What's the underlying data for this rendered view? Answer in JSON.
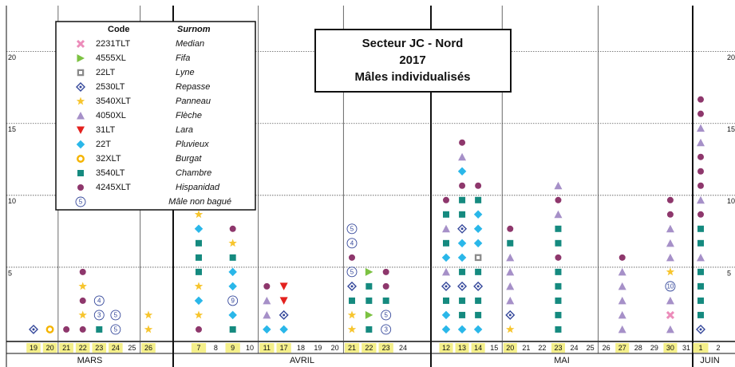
{
  "chart_data": {
    "type": "dot-stack",
    "title": [
      "Secteur JC - Nord",
      "2017",
      "Mâles individualisés"
    ],
    "ylim": [
      0,
      23.2
    ],
    "yticks": [
      5,
      10,
      15,
      20
    ],
    "grid": true,
    "legend": {
      "header": {
        "code": "Code",
        "name": "Surnom"
      },
      "entries": [
        {
          "code": "2231TLT",
          "name": "Median",
          "symbol": "x",
          "color": "#ec8cba"
        },
        {
          "code": "4555XL",
          "name": "Fifa",
          "symbol": "triangle-right",
          "color": "#7cc242"
        },
        {
          "code": "22LT",
          "name": "Lyne",
          "symbol": "square-open",
          "color": "#8a8a8a"
        },
        {
          "code": "2530LT",
          "name": "Repasse",
          "symbol": "diamond-open",
          "color": "#34479a"
        },
        {
          "code": "3540XLT",
          "name": "Panneau",
          "symbol": "star",
          "color": "#f7c52e"
        },
        {
          "code": "4050XL",
          "name": "Flèche",
          "symbol": "triangle-up",
          "color": "#a690c8"
        },
        {
          "code": "31LT",
          "name": "Lara",
          "symbol": "triangle-down",
          "color": "#e3211e"
        },
        {
          "code": "22T",
          "name": "Pluvieux",
          "symbol": "diamond",
          "color": "#2ab7e9"
        },
        {
          "code": "32XLT",
          "name": "Burgat",
          "symbol": "ring",
          "color": "#f5b400"
        },
        {
          "code": "3540LT",
          "name": "Chambre",
          "symbol": "square",
          "color": "#158a7f"
        },
        {
          "code": "4245XLT",
          "name": "Hispanidad",
          "symbol": "circle",
          "color": "#8e376c"
        }
      ],
      "non_bague": {
        "label": "5",
        "name": "Mâle non bagué",
        "color": "#34479a"
      }
    },
    "highlight_color": "#f4ef8a",
    "months": [
      {
        "name": "MARS",
        "days": [
          {
            "day": 19,
            "highlight": true,
            "marks": [
              "2530LT"
            ]
          },
          {
            "day": 20,
            "highlight": true,
            "marks": [
              "32XLT"
            ]
          },
          {
            "day": 21,
            "highlight": true,
            "marks": [
              "4245XLT"
            ]
          },
          {
            "day": 22,
            "highlight": true,
            "marks": [
              "4245XLT",
              "3540XLT",
              "4245XLT",
              "3540XLT",
              "4245XLT"
            ]
          },
          {
            "day": 23,
            "highlight": true,
            "marks": [
              "3540LT",
              "3",
              "4"
            ]
          },
          {
            "day": 24,
            "highlight": true,
            "marks": [
              "5",
              "5"
            ]
          },
          {
            "day": 25,
            "highlight": false
          },
          {
            "day": 26,
            "highlight": true,
            "marks": [
              "3540XLT",
              "3540XLT"
            ]
          }
        ]
      },
      {
        "name": "AVRIL",
        "days": [
          {
            "day": 7,
            "highlight": true,
            "marks": [
              "4245XLT",
              "3540XLT",
              "22T",
              "3540XLT",
              "3540LT",
              "3540LT",
              "3540LT",
              "22T",
              "3540XLT"
            ]
          },
          {
            "day": 8,
            "highlight": false
          },
          {
            "day": 9,
            "highlight": true,
            "marks": [
              "3540LT",
              "22T",
              "9",
              "22T",
              "22T",
              "3540LT",
              "3540XLT",
              "4245XLT"
            ]
          },
          {
            "day": 10,
            "highlight": false
          },
          {
            "day": 11,
            "highlight": true,
            "marks": [
              "22T",
              "4050XL",
              "4050XL",
              "4245XLT"
            ]
          },
          {
            "day": 17,
            "highlight": true,
            "marks": [
              "22T",
              "2530LT",
              "31LT",
              "31LT"
            ]
          },
          {
            "day": 18,
            "highlight": false
          },
          {
            "day": 19,
            "highlight": false
          },
          {
            "day": 20,
            "highlight": false
          },
          {
            "day": 21,
            "highlight": true,
            "marks": [
              "3540XLT",
              "3540XLT",
              "3540LT",
              "2530LT",
              "5",
              "4245XLT",
              "4",
              "5"
            ]
          },
          {
            "day": 22,
            "highlight": true,
            "marks": [
              "3540LT",
              "4555XL",
              "3540LT",
              "3540LT",
              "4555XL"
            ]
          },
          {
            "day": 23,
            "highlight": true,
            "marks": [
              "3",
              "5",
              "3540LT",
              "4245XLT",
              "4245XLT"
            ]
          },
          {
            "day": 24,
            "highlight": false
          }
        ]
      },
      {
        "name": "MAI",
        "days": [
          {
            "day": 12,
            "highlight": true,
            "marks": [
              "22T",
              "22T",
              "3540LT",
              "2530LT",
              "4050XL",
              "22T",
              "3540LT",
              "4050XL",
              "3540LT",
              "4245XLT"
            ]
          },
          {
            "day": 13,
            "highlight": true,
            "marks": [
              "22T",
              "3540LT",
              "3540LT",
              "2530LT",
              "3540LT",
              "22T",
              "22T",
              "2530LT",
              "3540LT",
              "3540LT",
              "4245XLT",
              "22T",
              "4050XL",
              "4245XLT"
            ]
          },
          {
            "day": 14,
            "highlight": true,
            "marks": [
              "22T",
              "3540LT",
              "3540LT",
              "2530LT",
              "3540LT",
              "22LT",
              "22T",
              "22T",
              "22T",
              "3540LT",
              "4245XLT"
            ]
          },
          {
            "day": 15,
            "highlight": false
          },
          {
            "day": 20,
            "highlight": true,
            "marks": [
              "3540XLT",
              "2530LT",
              "4050XL",
              "4050XL",
              "4050XL",
              "4050XL",
              "3540LT",
              "4245XLT"
            ]
          },
          {
            "day": 21,
            "highlight": false
          },
          {
            "day": 22,
            "highlight": false
          },
          {
            "day": 23,
            "highlight": true,
            "marks": [
              "3540LT",
              "3540LT",
              "3540LT",
              "3540LT",
              "3540LT",
              "4245XLT",
              "3540LT",
              "3540LT",
              "4050XL",
              "4245XLT",
              "4050XL"
            ]
          },
          {
            "day": 24,
            "highlight": false
          },
          {
            "day": 25,
            "highlight": false
          },
          {
            "day": 26,
            "highlight": false
          },
          {
            "day": 27,
            "highlight": true,
            "marks": [
              "4050XL",
              "4050XL",
              "4050XL",
              "4050XL",
              "4050XL",
              "4245XLT"
            ]
          },
          {
            "day": 28,
            "highlight": false
          },
          {
            "day": 29,
            "highlight": false
          },
          {
            "day": 30,
            "highlight": true,
            "marks": [
              "4050XL",
              "2231TLT",
              "4050XL",
              "10",
              "3540XLT",
              "4050XL",
              "4050XL",
              "4050XL",
              "4245XLT",
              "4245XLT"
            ]
          },
          {
            "day": 31,
            "highlight": false
          }
        ]
      },
      {
        "name": "JUIN",
        "days": [
          {
            "day": 1,
            "highlight": true,
            "marks": [
              "2530LT",
              "3540LT",
              "3540LT",
              "3540LT",
              "3540LT",
              "4050XL",
              "3540LT",
              "3540LT",
              "4245XLT",
              "4050XL",
              "4245XLT",
              "4245XLT",
              "4245XLT",
              "4050XL",
              "4050XL",
              "4245XLT",
              "4245XLT"
            ]
          },
          {
            "day": 2,
            "highlight": false
          }
        ]
      }
    ]
  }
}
